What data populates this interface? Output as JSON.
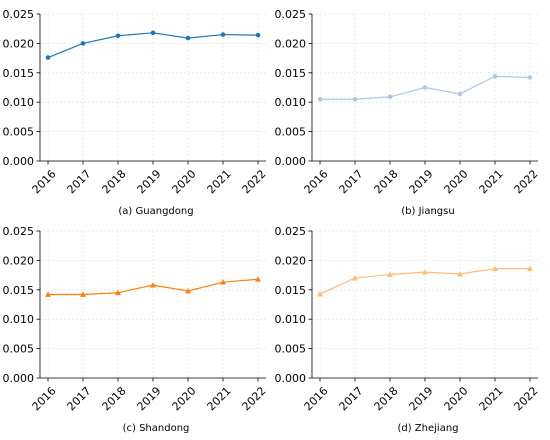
{
  "chart_data": [
    {
      "type": "line",
      "caption": "(a) Guangdong",
      "x": [
        "2016",
        "2017",
        "2018",
        "2019",
        "2020",
        "2021",
        "2022"
      ],
      "series": [
        {
          "values": [
            0.0176,
            0.02,
            0.0213,
            0.0218,
            0.0209,
            0.0215,
            0.0214
          ],
          "color": "#1f77b4",
          "marker": "circle"
        }
      ],
      "ylim": [
        0,
        0.025
      ],
      "yticks": [
        "0.000",
        "0.005",
        "0.010",
        "0.015",
        "0.020",
        "0.025"
      ],
      "grid": true,
      "xlabel": "",
      "ylabel": ""
    },
    {
      "type": "line",
      "caption": "(b) Jiangsu",
      "x": [
        "2016",
        "2017",
        "2018",
        "2019",
        "2020",
        "2021",
        "2022"
      ],
      "series": [
        {
          "values": [
            0.0105,
            0.0105,
            0.0109,
            0.0125,
            0.0114,
            0.0144,
            0.0142
          ],
          "color": "#aec7e8",
          "marker": "circle"
        }
      ],
      "ylim": [
        0,
        0.025
      ],
      "yticks": [
        "0.000",
        "0.005",
        "0.010",
        "0.015",
        "0.020",
        "0.025"
      ],
      "grid": true,
      "xlabel": "",
      "ylabel": ""
    },
    {
      "type": "line",
      "caption": "(c) Shandong",
      "x": [
        "2016",
        "2017",
        "2018",
        "2019",
        "2020",
        "2021",
        "2022"
      ],
      "series": [
        {
          "values": [
            0.0142,
            0.0142,
            0.0145,
            0.0158,
            0.0148,
            0.0163,
            0.0168
          ],
          "color": "#ff7f0e",
          "marker": "triangle"
        }
      ],
      "ylim": [
        0,
        0.025
      ],
      "yticks": [
        "0.000",
        "0.005",
        "0.010",
        "0.015",
        "0.020",
        "0.025"
      ],
      "grid": true,
      "xlabel": "",
      "ylabel": ""
    },
    {
      "type": "line",
      "caption": "(d) Zhejiang",
      "x": [
        "2016",
        "2017",
        "2018",
        "2019",
        "2020",
        "2021",
        "2022"
      ],
      "series": [
        {
          "values": [
            0.0143,
            0.017,
            0.0176,
            0.018,
            0.0177,
            0.0186,
            0.0186
          ],
          "color": "#ffbb78",
          "marker": "triangle"
        }
      ],
      "ylim": [
        0,
        0.025
      ],
      "yticks": [
        "0.000",
        "0.005",
        "0.010",
        "0.015",
        "0.020",
        "0.025"
      ],
      "grid": true,
      "xlabel": "",
      "ylabel": ""
    }
  ]
}
